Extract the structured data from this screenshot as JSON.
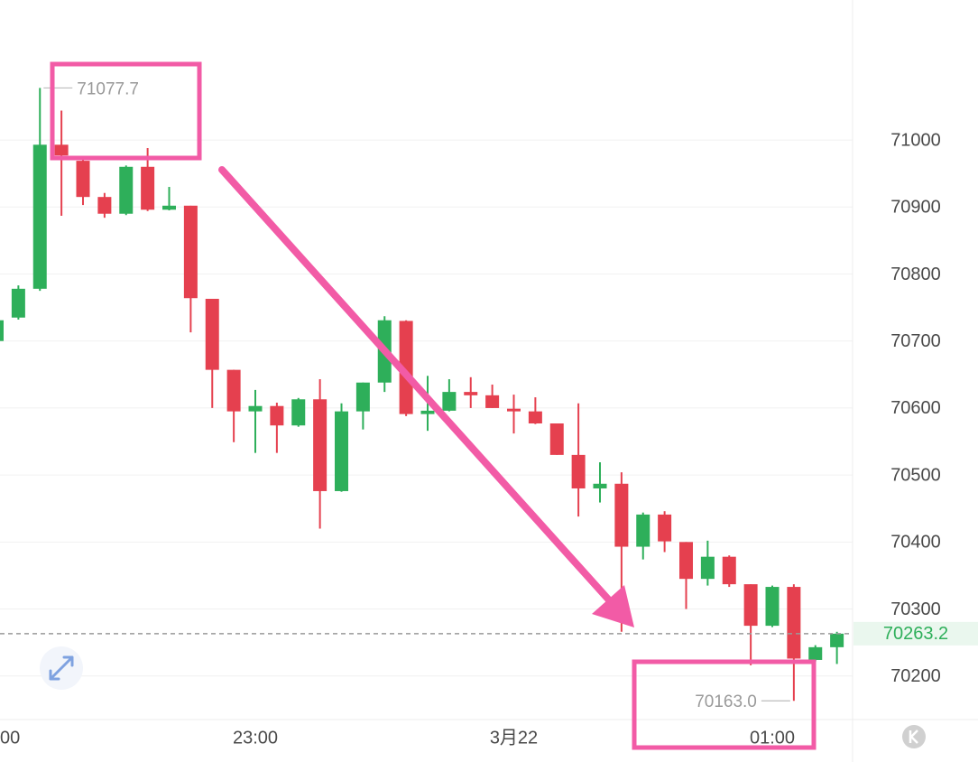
{
  "chart_data": {
    "type": "candlestick",
    "categories": [
      "00",
      null,
      null,
      null,
      null,
      null,
      null,
      null,
      null,
      null,
      null,
      null,
      "23:00",
      null,
      null,
      null,
      null,
      null,
      null,
      null,
      null,
      null,
      null,
      null,
      "3月22",
      null,
      null,
      null,
      null,
      null,
      null,
      null,
      null,
      null,
      null,
      null,
      "01:00",
      null,
      null,
      null
    ],
    "open": [
      70700,
      70735,
      70778,
      70993,
      70969,
      70915,
      70890,
      70960,
      70896,
      70902,
      70763,
      70657,
      70595,
      70603,
      70574,
      70613,
      70476,
      70595,
      70638,
      70730,
      70591,
      70596,
      70624,
      70619,
      70599,
      70595,
      70577,
      70530,
      70480,
      70487,
      70393,
      70441,
      70400,
      70345,
      70378,
      70337,
      70275,
      70333,
      70224,
      70243
    ],
    "high": [
      70735,
      70783,
      71077.7,
      71044,
      70973,
      70921,
      70962,
      70988,
      70930,
      70902,
      70763,
      70657,
      70627,
      70608,
      70615,
      70643,
      70607,
      70638,
      70737,
      70731,
      70648,
      70643,
      70646,
      70635,
      70620,
      70616,
      70577,
      70607,
      70519,
      70504,
      70444,
      70446,
      70400,
      70402,
      70380,
      70337,
      70335,
      70337,
      70246,
      70266
    ],
    "low": [
      70695,
      70732,
      70775,
      70887,
      70903,
      70884,
      70888,
      70894,
      70895,
      70713,
      70600,
      70549,
      70533,
      70533,
      70572,
      70420,
      70475,
      70568,
      70624,
      70588,
      70566,
      70595,
      70600,
      70600,
      70562,
      70576,
      70530,
      70438,
      70459,
      70266,
      70374,
      70385,
      70300,
      70335,
      70333,
      70216,
      70273,
      70163.0,
      70222,
      70218
    ],
    "close": [
      70731,
      70778,
      70993,
      70977,
      70915,
      70890,
      70960,
      70896,
      70902,
      70764,
      70657,
      70595,
      70603,
      70574,
      70613,
      70476,
      70595,
      70638,
      70731,
      70591,
      70596,
      70624,
      70619,
      70600,
      70595,
      70577,
      70530,
      70480,
      70487,
      70393,
      70441,
      70401,
      70345,
      70378,
      70337,
      70275,
      70333,
      70226,
      70243,
      70263.2
    ],
    "up_color": "#2eaf5a",
    "down_color": "#e5404f",
    "ylim": [
      70135,
      71209
    ],
    "yticks": [
      70200,
      70300,
      70400,
      70500,
      70600,
      70700,
      70800,
      70900,
      71000
    ],
    "grid": true,
    "last_price": 70263.2,
    "annotations": [
      {
        "value": 71077.7,
        "label": "71077.7"
      },
      {
        "value": 70163.0,
        "label": "70163.0"
      }
    ]
  }
}
